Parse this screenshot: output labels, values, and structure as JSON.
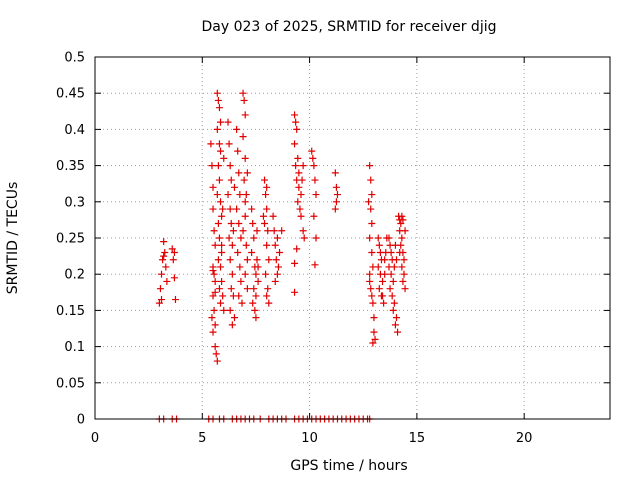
{
  "chart_data": {
    "type": "scatter",
    "title": "Day 023 of 2025, SRMTID for receiver djig",
    "xlabel": "GPS time / hours",
    "ylabel": "SRMTID / TECUs",
    "xlim": [
      0,
      24
    ],
    "ylim": [
      0,
      0.5
    ],
    "xticks": [
      0,
      5,
      10,
      15,
      20
    ],
    "xtick_labels": [
      "0",
      "5",
      "10",
      "15",
      "20"
    ],
    "yticks": [
      0,
      0.05,
      0.1,
      0.15,
      0.2,
      0.25,
      0.3,
      0.35,
      0.4,
      0.45,
      0.5
    ],
    "ytick_labels": [
      "0",
      "0.05",
      "0.1",
      "0.15",
      "0.2",
      "0.25",
      "0.3",
      "0.35",
      "0.4",
      "0.45",
      "0.5"
    ],
    "grid": true,
    "marker": "+",
    "marker_color": "#e00000",
    "series": [
      {
        "points": [
          [
            3.0,
            0.16
          ],
          [
            3.05,
            0.18
          ],
          [
            3.1,
            0.2
          ],
          [
            3.15,
            0.22
          ],
          [
            3.2,
            0.245
          ],
          [
            3.25,
            0.23
          ],
          [
            3.3,
            0.21
          ],
          [
            3.35,
            0.19
          ],
          [
            3.1,
            0.165
          ],
          [
            3.2,
            0.225
          ],
          [
            3.6,
            0.235
          ],
          [
            3.65,
            0.22
          ],
          [
            3.7,
            0.195
          ],
          [
            3.75,
            0.165
          ],
          [
            3.7,
            0.23
          ],
          [
            5.4,
            0.38
          ],
          [
            5.45,
            0.35
          ],
          [
            5.5,
            0.32
          ],
          [
            5.5,
            0.29
          ],
          [
            5.55,
            0.26
          ],
          [
            5.6,
            0.24
          ],
          [
            5.5,
            0.21
          ],
          [
            5.55,
            0.2
          ],
          [
            5.6,
            0.19
          ],
          [
            5.5,
            0.17
          ],
          [
            5.55,
            0.15
          ],
          [
            5.6,
            0.13
          ],
          [
            5.5,
            0.12
          ],
          [
            5.6,
            0.1
          ],
          [
            5.65,
            0.09
          ],
          [
            5.7,
            0.08
          ],
          [
            5.45,
            0.14
          ],
          [
            5.5,
            0.205
          ],
          [
            5.6,
            0.175
          ],
          [
            5.7,
            0.45
          ],
          [
            5.75,
            0.44
          ],
          [
            5.8,
            0.43
          ],
          [
            5.85,
            0.41
          ],
          [
            5.7,
            0.4
          ],
          [
            5.8,
            0.38
          ],
          [
            5.85,
            0.37
          ],
          [
            5.75,
            0.35
          ],
          [
            5.8,
            0.33
          ],
          [
            5.7,
            0.31
          ],
          [
            5.85,
            0.3
          ],
          [
            5.9,
            0.28
          ],
          [
            5.75,
            0.27
          ],
          [
            5.8,
            0.25
          ],
          [
            5.9,
            0.24
          ],
          [
            5.75,
            0.22
          ],
          [
            5.85,
            0.21
          ],
          [
            5.9,
            0.19
          ],
          [
            5.8,
            0.18
          ],
          [
            5.95,
            0.17
          ],
          [
            5.85,
            0.16
          ],
          [
            6.0,
            0.15
          ],
          [
            5.9,
            0.23
          ],
          [
            5.95,
            0.29
          ],
          [
            6.0,
            0.36
          ],
          [
            6.2,
            0.41
          ],
          [
            6.25,
            0.38
          ],
          [
            6.3,
            0.35
          ],
          [
            6.35,
            0.33
          ],
          [
            6.2,
            0.31
          ],
          [
            6.3,
            0.29
          ],
          [
            6.35,
            0.27
          ],
          [
            6.25,
            0.25
          ],
          [
            6.4,
            0.24
          ],
          [
            6.3,
            0.22
          ],
          [
            6.4,
            0.2
          ],
          [
            6.35,
            0.18
          ],
          [
            6.45,
            0.17
          ],
          [
            6.3,
            0.15
          ],
          [
            6.4,
            0.13
          ],
          [
            6.5,
            0.14
          ],
          [
            6.45,
            0.26
          ],
          [
            6.5,
            0.32
          ],
          [
            6.6,
            0.4
          ],
          [
            6.65,
            0.37
          ],
          [
            6.7,
            0.34
          ],
          [
            6.75,
            0.31
          ],
          [
            6.6,
            0.29
          ],
          [
            6.7,
            0.27
          ],
          [
            6.8,
            0.25
          ],
          [
            6.65,
            0.23
          ],
          [
            6.75,
            0.21
          ],
          [
            6.8,
            0.19
          ],
          [
            6.7,
            0.17
          ],
          [
            6.85,
            0.16
          ],
          [
            6.9,
            0.45
          ],
          [
            6.95,
            0.44
          ],
          [
            7.0,
            0.42
          ],
          [
            6.9,
            0.39
          ],
          [
            7.0,
            0.36
          ],
          [
            6.95,
            0.33
          ],
          [
            7.05,
            0.31
          ],
          [
            7.0,
            0.28
          ],
          [
            6.9,
            0.26
          ],
          [
            7.05,
            0.24
          ],
          [
            7.1,
            0.22
          ],
          [
            7.0,
            0.2
          ],
          [
            7.1,
            0.18
          ],
          [
            7.0,
            0.3
          ],
          [
            7.1,
            0.34
          ],
          [
            7.3,
            0.29
          ],
          [
            7.35,
            0.27
          ],
          [
            7.4,
            0.25
          ],
          [
            7.3,
            0.23
          ],
          [
            7.45,
            0.21
          ],
          [
            7.5,
            0.2
          ],
          [
            7.4,
            0.18
          ],
          [
            7.35,
            0.16
          ],
          [
            7.45,
            0.15
          ],
          [
            7.5,
            0.14
          ],
          [
            7.55,
            0.22
          ],
          [
            7.6,
            0.19
          ],
          [
            7.5,
            0.17
          ],
          [
            7.6,
            0.21
          ],
          [
            7.55,
            0.26
          ],
          [
            7.9,
            0.33
          ],
          [
            7.95,
            0.31
          ],
          [
            8.0,
            0.29
          ],
          [
            7.9,
            0.27
          ],
          [
            8.05,
            0.26
          ],
          [
            8.0,
            0.24
          ],
          [
            8.1,
            0.22
          ],
          [
            7.95,
            0.2
          ],
          [
            8.05,
            0.18
          ],
          [
            8.0,
            0.17
          ],
          [
            8.1,
            0.16
          ],
          [
            7.85,
            0.28
          ],
          [
            8.0,
            0.32
          ],
          [
            8.3,
            0.28
          ],
          [
            8.35,
            0.26
          ],
          [
            8.4,
            0.24
          ],
          [
            8.45,
            0.22
          ],
          [
            8.5,
            0.2
          ],
          [
            8.4,
            0.19
          ],
          [
            8.55,
            0.21
          ],
          [
            8.6,
            0.23
          ],
          [
            8.7,
            0.26
          ],
          [
            8.5,
            0.25
          ],
          [
            9.3,
            0.42
          ],
          [
            9.35,
            0.41
          ],
          [
            9.4,
            0.4
          ],
          [
            9.3,
            0.38
          ],
          [
            9.45,
            0.36
          ],
          [
            9.35,
            0.35
          ],
          [
            9.4,
            0.33
          ],
          [
            9.5,
            0.32
          ],
          [
            9.45,
            0.3
          ],
          [
            9.55,
            0.29
          ],
          [
            9.6,
            0.31
          ],
          [
            9.65,
            0.33
          ],
          [
            9.7,
            0.35
          ],
          [
            9.6,
            0.28
          ],
          [
            9.7,
            0.26
          ],
          [
            9.75,
            0.25
          ],
          [
            9.3,
            0.175
          ],
          [
            9.3,
            0.215
          ],
          [
            9.4,
            0.235
          ],
          [
            9.5,
            0.34
          ],
          [
            10.1,
            0.37
          ],
          [
            10.15,
            0.36
          ],
          [
            10.2,
            0.35
          ],
          [
            10.25,
            0.33
          ],
          [
            10.3,
            0.31
          ],
          [
            10.2,
            0.28
          ],
          [
            10.3,
            0.25
          ],
          [
            10.25,
            0.213
          ],
          [
            11.2,
            0.34
          ],
          [
            11.25,
            0.32
          ],
          [
            11.3,
            0.31
          ],
          [
            11.2,
            0.29
          ],
          [
            11.25,
            0.3
          ],
          [
            12.8,
            0.35
          ],
          [
            12.85,
            0.33
          ],
          [
            12.9,
            0.31
          ],
          [
            12.85,
            0.29
          ],
          [
            12.9,
            0.27
          ],
          [
            12.8,
            0.25
          ],
          [
            12.9,
            0.23
          ],
          [
            12.95,
            0.21
          ],
          [
            12.8,
            0.2
          ],
          [
            12.85,
            0.18
          ],
          [
            12.9,
            0.17
          ],
          [
            12.95,
            0.16
          ],
          [
            13.0,
            0.12
          ],
          [
            13.05,
            0.11
          ],
          [
            12.95,
            0.105
          ],
          [
            13.0,
            0.14
          ],
          [
            12.75,
            0.3
          ],
          [
            12.8,
            0.19
          ],
          [
            13.2,
            0.25
          ],
          [
            13.25,
            0.24
          ],
          [
            13.3,
            0.23
          ],
          [
            13.35,
            0.22
          ],
          [
            13.2,
            0.21
          ],
          [
            13.3,
            0.2
          ],
          [
            13.4,
            0.19
          ],
          [
            13.25,
            0.18
          ],
          [
            13.35,
            0.17
          ],
          [
            13.45,
            0.16
          ],
          [
            13.5,
            0.2
          ],
          [
            13.55,
            0.23
          ],
          [
            13.6,
            0.25
          ],
          [
            13.5,
            0.22
          ],
          [
            13.4,
            0.17
          ],
          [
            13.7,
            0.25
          ],
          [
            13.75,
            0.24
          ],
          [
            13.8,
            0.23
          ],
          [
            13.85,
            0.22
          ],
          [
            13.7,
            0.21
          ],
          [
            13.8,
            0.2
          ],
          [
            13.9,
            0.19
          ],
          [
            13.75,
            0.18
          ],
          [
            13.85,
            0.17
          ],
          [
            13.95,
            0.16
          ],
          [
            14.0,
            0.24
          ],
          [
            14.05,
            0.22
          ],
          [
            13.9,
            0.15
          ],
          [
            14.0,
            0.13
          ],
          [
            14.05,
            0.14
          ],
          [
            14.1,
            0.12
          ],
          [
            13.95,
            0.21
          ],
          [
            14.15,
            0.28
          ],
          [
            14.2,
            0.275
          ],
          [
            14.25,
            0.27
          ],
          [
            14.3,
            0.28
          ],
          [
            14.35,
            0.275
          ],
          [
            14.2,
            0.26
          ],
          [
            14.3,
            0.25
          ],
          [
            14.25,
            0.24
          ],
          [
            14.35,
            0.23
          ],
          [
            14.4,
            0.22
          ],
          [
            14.3,
            0.21
          ],
          [
            14.4,
            0.2
          ],
          [
            14.35,
            0.19
          ],
          [
            14.45,
            0.18
          ],
          [
            14.2,
            0.23
          ],
          [
            14.45,
            0.26
          ],
          [
            3.0,
            0
          ],
          [
            3.2,
            0
          ],
          [
            3.6,
            0
          ],
          [
            3.8,
            0
          ],
          [
            5.3,
            0
          ],
          [
            5.5,
            0
          ],
          [
            5.8,
            0
          ],
          [
            6.0,
            0
          ],
          [
            6.4,
            0
          ],
          [
            6.6,
            0
          ],
          [
            6.8,
            0
          ],
          [
            7.0,
            0
          ],
          [
            7.2,
            0
          ],
          [
            7.4,
            0
          ],
          [
            7.7,
            0
          ],
          [
            8.1,
            0
          ],
          [
            8.3,
            0
          ],
          [
            8.5,
            0
          ],
          [
            8.7,
            0
          ],
          [
            8.9,
            0
          ],
          [
            9.3,
            0
          ],
          [
            9.5,
            0
          ],
          [
            9.7,
            0
          ],
          [
            9.9,
            0
          ],
          [
            10.1,
            0
          ],
          [
            10.3,
            0
          ],
          [
            10.5,
            0
          ],
          [
            10.7,
            0
          ],
          [
            10.9,
            0
          ],
          [
            11.1,
            0
          ],
          [
            11.3,
            0
          ],
          [
            11.5,
            0
          ],
          [
            11.7,
            0
          ],
          [
            11.9,
            0
          ],
          [
            12.1,
            0
          ],
          [
            12.3,
            0
          ],
          [
            12.5,
            0
          ],
          [
            12.7,
            0
          ],
          [
            12.8,
            0
          ]
        ]
      }
    ]
  }
}
